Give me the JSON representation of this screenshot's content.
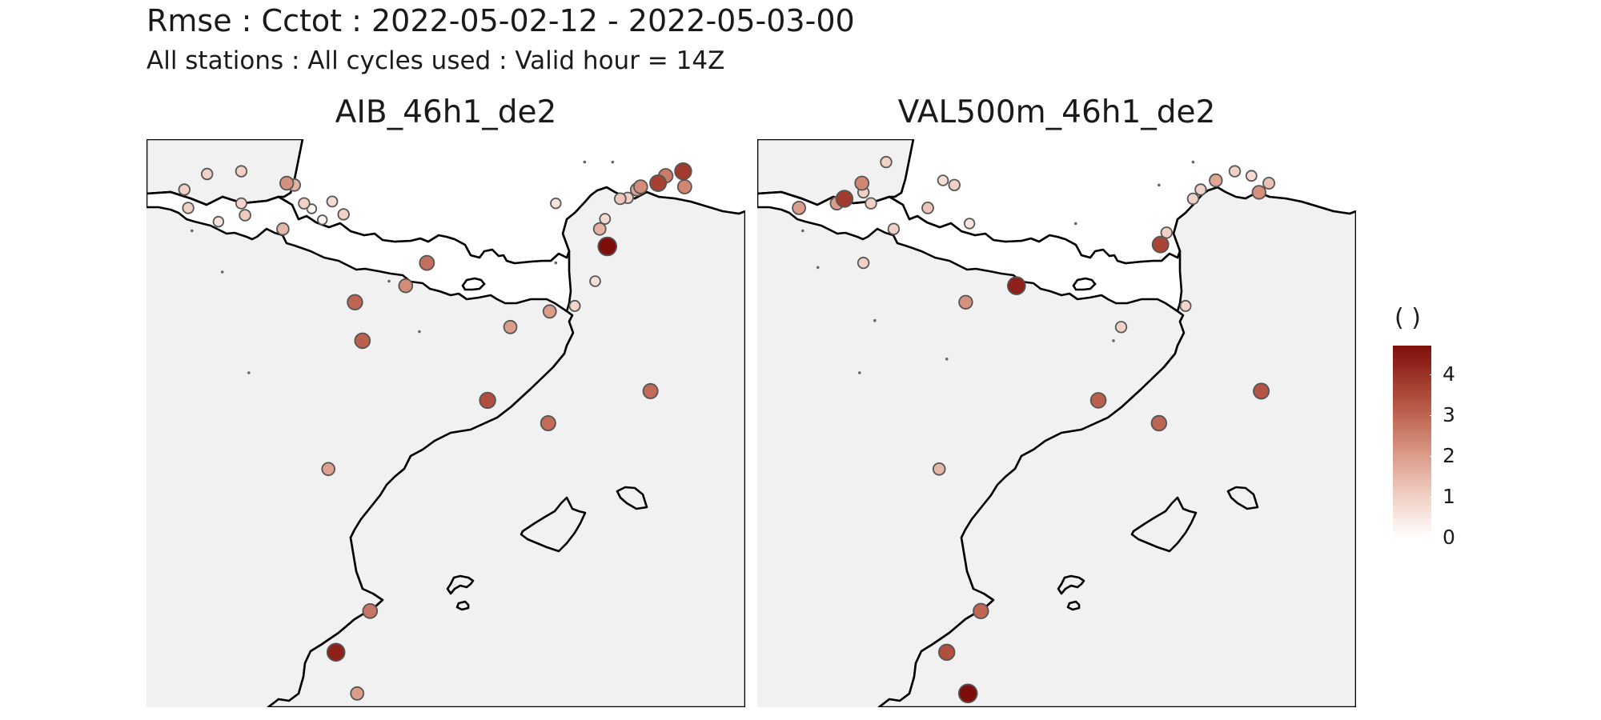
{
  "title": "Rmse : Cctot : 2022-05-02-12 - 2022-05-03-00",
  "subtitle": "All stations : All cycles used : Valid hour = 14Z",
  "colors": {
    "sea": "#f1f1f1",
    "land": "#ffffff",
    "coastline": "#000000",
    "point_border": "#555555",
    "scale_low": "#ffffff",
    "scale_high": "#7f0e0a"
  },
  "legend": {
    "title": "( )",
    "ticks": [
      "0",
      "1",
      "2",
      "3",
      "4"
    ],
    "range": [
      0,
      4.7
    ]
  },
  "panels": [
    {
      "name": "AIB_46h1_de2",
      "stations": [
        {
          "lon": 3.28,
          "lat": 48.85,
          "rmse": 3.8
        },
        {
          "lon": 3.05,
          "lat": 48.8,
          "rmse": 2.6
        },
        {
          "lon": 3.3,
          "lat": 48.68,
          "rmse": 2.4
        },
        {
          "lon": 2.95,
          "lat": 48.72,
          "rmse": 3.7
        },
        {
          "lon": 2.72,
          "lat": 48.68,
          "rmse": 2.3
        },
        {
          "lon": 2.67,
          "lat": 48.65,
          "rmse": 1.8
        },
        {
          "lon": 2.55,
          "lat": 48.56,
          "rmse": 1.0
        },
        {
          "lon": 2.45,
          "lat": 48.55,
          "rmse": 1.2
        },
        {
          "lon": 2.25,
          "lat": 48.33,
          "rmse": 0.8
        },
        {
          "lon": 2.18,
          "lat": 48.22,
          "rmse": 1.6
        },
        {
          "lon": 2.28,
          "lat": 48.03,
          "rmse": 4.7
        },
        {
          "lon": 2.12,
          "lat": 47.65,
          "rmse": 0.7
        },
        {
          "lon": 1.85,
          "lat": 47.38,
          "rmse": 0.9
        },
        {
          "lon": 1.52,
          "lat": 47.32,
          "rmse": 2.0
        },
        {
          "lon": 1.0,
          "lat": 47.15,
          "rmse": 2.0
        },
        {
          "lon": 0.7,
          "lat": 46.35,
          "rmse": 3.4
        },
        {
          "lon": 1.5,
          "lat": 46.1,
          "rmse": 2.9
        },
        {
          "lon": 2.85,
          "lat": 46.45,
          "rmse": 2.9
        },
        {
          "lon": -1.4,
          "lat": 45.6,
          "rmse": 1.9
        },
        {
          "lon": -0.85,
          "lat": 44.05,
          "rmse": 2.7
        },
        {
          "lon": -1.3,
          "lat": 43.6,
          "rmse": 4.3
        },
        {
          "lon": -1.02,
          "lat": 43.15,
          "rmse": 2.0
        },
        {
          "lon": -0.38,
          "lat": 47.6,
          "rmse": 2.3
        },
        {
          "lon": -0.1,
          "lat": 47.85,
          "rmse": 2.8
        },
        {
          "lon": -1.05,
          "lat": 47.42,
          "rmse": 3.0
        },
        {
          "lon": -0.95,
          "lat": 47.0,
          "rmse": 3.1
        },
        {
          "lon": -2.0,
          "lat": 48.22,
          "rmse": 1.5
        },
        {
          "lon": -2.55,
          "lat": 48.5,
          "rmse": 0.9
        },
        {
          "lon": -1.95,
          "lat": 48.72,
          "rmse": 2.2
        },
        {
          "lon": -1.72,
          "lat": 48.5,
          "rmse": 1.0
        },
        {
          "lon": -1.2,
          "lat": 48.38,
          "rmse": 1.0
        },
        {
          "lon": -1.35,
          "lat": 48.52,
          "rmse": 0.8
        },
        {
          "lon": -1.85,
          "lat": 48.7,
          "rmse": 1.6
        },
        {
          "lon": -2.5,
          "lat": 48.37,
          "rmse": 1.1
        },
        {
          "lon": -2.55,
          "lat": 48.85,
          "rmse": 1.0
        },
        {
          "lon": -3.0,
          "lat": 48.82,
          "rmse": 1.0
        },
        {
          "lon": -3.3,
          "lat": 48.65,
          "rmse": 1.0
        },
        {
          "lon": -3.25,
          "lat": 48.45,
          "rmse": 1.0
        },
        {
          "lon": -2.85,
          "lat": 48.3,
          "rmse": 0.6
        },
        {
          "lon": -1.62,
          "lat": 48.44,
          "rmse": 0.2
        },
        {
          "lon": -1.48,
          "lat": 48.32,
          "rmse": 0.2
        },
        {
          "lon": 1.6,
          "lat": 48.5,
          "rmse": 0.6
        },
        {
          "lon": 1.98,
          "lat": 48.95,
          "rmse": 0.0
        },
        {
          "lon": 2.35,
          "lat": 48.95,
          "rmse": 0.0
        },
        {
          "lon": 1.6,
          "lat": 47.85,
          "rmse": 0.0
        },
        {
          "lon": -0.6,
          "lat": 47.65,
          "rmse": 0.0
        },
        {
          "lon": -0.2,
          "lat": 47.1,
          "rmse": 0.0
        },
        {
          "lon": -3.2,
          "lat": 48.2,
          "rmse": 0.0
        },
        {
          "lon": -2.45,
          "lat": 46.65,
          "rmse": 0.0
        },
        {
          "lon": -2.8,
          "lat": 47.75,
          "rmse": 0.0
        }
      ]
    },
    {
      "name": "VAL500m_46h1_de2",
      "stations": [
        {
          "lon": 2.82,
          "lat": 48.62,
          "rmse": 2.2
        },
        {
          "lon": 2.95,
          "lat": 48.72,
          "rmse": 1.3
        },
        {
          "lon": 2.72,
          "lat": 48.8,
          "rmse": 0.8
        },
        {
          "lon": 2.5,
          "lat": 48.85,
          "rmse": 1.0
        },
        {
          "lon": 2.25,
          "lat": 48.75,
          "rmse": 1.8
        },
        {
          "lon": 2.05,
          "lat": 48.65,
          "rmse": 1.0
        },
        {
          "lon": 1.95,
          "lat": 48.55,
          "rmse": 1.0
        },
        {
          "lon": 1.6,
          "lat": 48.18,
          "rmse": 1.0
        },
        {
          "lon": 1.52,
          "lat": 48.05,
          "rmse": 3.6
        },
        {
          "lon": 1.85,
          "lat": 47.38,
          "rmse": 0.9
        },
        {
          "lon": 1.0,
          "lat": 47.15,
          "rmse": 1.0
        },
        {
          "lon": 0.7,
          "lat": 46.35,
          "rmse": 3.1
        },
        {
          "lon": 1.5,
          "lat": 46.1,
          "rmse": 3.0
        },
        {
          "lon": 2.85,
          "lat": 46.45,
          "rmse": 3.3
        },
        {
          "lon": -1.4,
          "lat": 45.6,
          "rmse": 1.5
        },
        {
          "lon": -0.85,
          "lat": 44.05,
          "rmse": 3.0
        },
        {
          "lon": -1.3,
          "lat": 43.6,
          "rmse": 3.4
        },
        {
          "lon": -1.02,
          "lat": 43.15,
          "rmse": 4.7
        },
        {
          "lon": -0.38,
          "lat": 47.6,
          "rmse": 4.3
        },
        {
          "lon": -1.05,
          "lat": 47.42,
          "rmse": 2.2
        },
        {
          "lon": -2.0,
          "lat": 48.22,
          "rmse": 1.0
        },
        {
          "lon": -1.55,
          "lat": 48.45,
          "rmse": 1.2
        },
        {
          "lon": -1.35,
          "lat": 48.75,
          "rmse": 0.7
        },
        {
          "lon": -1.0,
          "lat": 48.28,
          "rmse": 0.6
        },
        {
          "lon": -1.2,
          "lat": 48.7,
          "rmse": 1.0
        },
        {
          "lon": -2.3,
          "lat": 48.5,
          "rmse": 1.0
        },
        {
          "lon": -2.65,
          "lat": 48.55,
          "rmse": 3.8
        },
        {
          "lon": -2.75,
          "lat": 48.5,
          "rmse": 2.0
        },
        {
          "lon": -2.42,
          "lat": 48.72,
          "rmse": 2.4
        },
        {
          "lon": -2.1,
          "lat": 48.95,
          "rmse": 1.0
        },
        {
          "lon": -3.25,
          "lat": 48.45,
          "rmse": 2.0
        },
        {
          "lon": -2.4,
          "lat": 48.62,
          "rmse": 1.0
        },
        {
          "lon": -2.4,
          "lat": 47.85,
          "rmse": 1.0
        },
        {
          "lon": 1.5,
          "lat": 48.7,
          "rmse": 0.0
        },
        {
          "lon": -3.2,
          "lat": 48.2,
          "rmse": 0.0
        },
        {
          "lon": -3.0,
          "lat": 47.8,
          "rmse": 0.0
        },
        {
          "lon": -2.25,
          "lat": 47.22,
          "rmse": 0.0
        },
        {
          "lon": -1.3,
          "lat": 46.8,
          "rmse": 0.0
        },
        {
          "lon": 1.95,
          "lat": 48.95,
          "rmse": 0.0
        },
        {
          "lon": 0.4,
          "lat": 48.28,
          "rmse": 0.0
        },
        {
          "lon": 0.9,
          "lat": 47.0,
          "rmse": 0.0
        },
        {
          "lon": -2.45,
          "lat": 46.65,
          "rmse": 0.0
        }
      ]
    }
  ]
}
